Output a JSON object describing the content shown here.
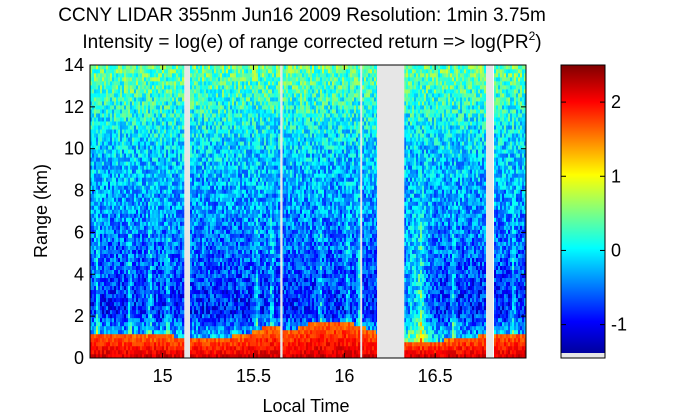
{
  "chart_data": {
    "type": "heatmap",
    "title_line1": "CCNY LIDAR 355nm Jun16 2009 Resolution: 1min 3.75m",
    "title_line2_prefix": "Intensity = log(e) of range corrected return => log(PR",
    "title_line2_sup": "2",
    "title_line2_suffix": ")",
    "xlabel": "Local Time",
    "ylabel": "Range (km)",
    "xlim": [
      14.6,
      17.0
    ],
    "ylim": [
      0,
      14
    ],
    "xticks": [
      15,
      15.5,
      16,
      16.5
    ],
    "xtick_labels": [
      "15",
      "15.5",
      "16",
      "16.5"
    ],
    "yticks": [
      0,
      2,
      4,
      6,
      8,
      10,
      12,
      14
    ],
    "ytick_labels": [
      "0",
      "2",
      "4",
      "6",
      "8",
      "10",
      "12",
      "14"
    ],
    "colorbar": {
      "range": [
        -1.45,
        2.5
      ],
      "ticks": [
        -1,
        0,
        1,
        2
      ],
      "tick_labels": [
        "-1",
        "0",
        "1",
        "2"
      ]
    },
    "data_gaps": [
      [
        15.12,
        15.15
      ],
      [
        15.65,
        15.66
      ],
      [
        16.09,
        16.095
      ],
      [
        16.18,
        16.33
      ],
      [
        16.78,
        16.82
      ]
    ],
    "low_cloud_tops_km": [
      {
        "x": 14.6,
        "h": 1.2
      },
      {
        "x": 14.7,
        "h": 1.2
      },
      {
        "x": 14.85,
        "h": 1.1
      },
      {
        "x": 15.0,
        "h": 1.1
      },
      {
        "x": 15.15,
        "h": 1.0
      },
      {
        "x": 15.3,
        "h": 1.0
      },
      {
        "x": 15.45,
        "h": 1.1
      },
      {
        "x": 15.6,
        "h": 1.6
      },
      {
        "x": 15.7,
        "h": 1.3
      },
      {
        "x": 15.85,
        "h": 1.8
      },
      {
        "x": 16.0,
        "h": 1.8
      },
      {
        "x": 16.1,
        "h": 1.5
      },
      {
        "x": 16.35,
        "h": 0.7
      },
      {
        "x": 16.5,
        "h": 0.8
      },
      {
        "x": 16.65,
        "h": 1.0
      },
      {
        "x": 16.8,
        "h": 1.1
      },
      {
        "x": 17.0,
        "h": 1.2
      }
    ]
  }
}
